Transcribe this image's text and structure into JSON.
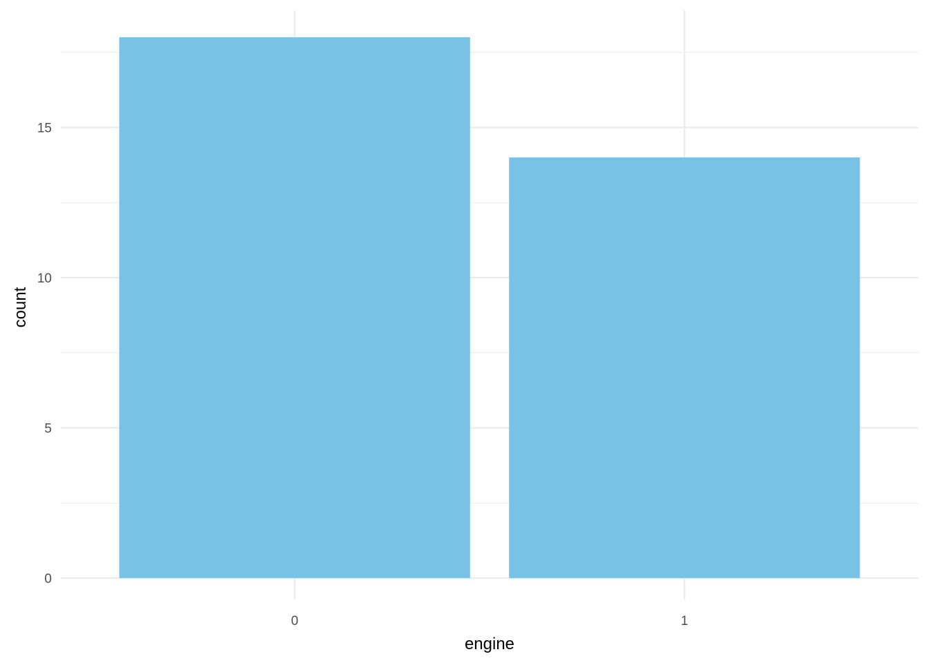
{
  "chart_data": {
    "type": "bar",
    "categories": [
      "0",
      "1"
    ],
    "values": [
      18,
      14
    ],
    "title": "",
    "xlabel": "engine",
    "ylabel": "count",
    "ylim": [
      0,
      18.9
    ],
    "y_ticks": [
      0,
      5,
      10,
      15
    ],
    "y_tick_labels": [
      "0",
      "5",
      "10",
      "15"
    ],
    "grid": true,
    "legend": "none",
    "bar_color": "#7AC2E5",
    "grid_color": "#EBEBEB"
  }
}
